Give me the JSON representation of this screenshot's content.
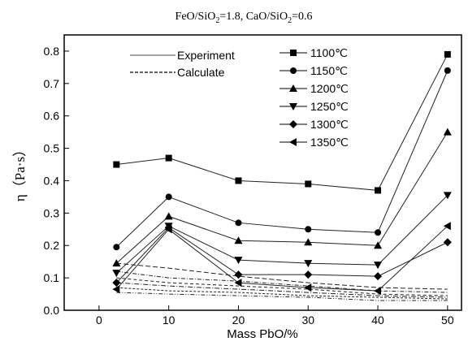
{
  "chart_data": {
    "type": "line",
    "title": "FeO/SiO2=1.8, CaO/SiO2=0.6",
    "title_parts": {
      "a": "FeO/SiO",
      "a_sub": "2",
      "b": "=1.8, CaO/SiO",
      "b_sub": "2",
      "c": "=0.6"
    },
    "xlabel": "Mass PbO/%",
    "ylabel": "η（Pa·s）",
    "xlim": [
      -5,
      52
    ],
    "ylim": [
      0,
      0.85
    ],
    "xticks": [
      0,
      10,
      20,
      30,
      40,
      50
    ],
    "yticks": [
      0.0,
      0.1,
      0.2,
      0.3,
      0.4,
      0.5,
      0.6,
      0.7,
      0.8
    ],
    "ytick_labels": [
      "0.0",
      "0.1",
      "0.2",
      "0.3",
      "0.4",
      "0.5",
      "0.6",
      "0.7",
      "0.8"
    ],
    "x": [
      2.5,
      10,
      20,
      30,
      40,
      50
    ],
    "style_legend": {
      "solid_label": "Experiment",
      "dashed_label": "Calculate"
    },
    "legend_position": "top",
    "series": [
      {
        "name": "1100℃",
        "marker": "square",
        "experiment": [
          0.45,
          0.47,
          0.4,
          0.39,
          0.37,
          0.79
        ],
        "calculate": [
          0.145,
          0.13,
          0.105,
          0.085,
          0.07,
          0.065
        ]
      },
      {
        "name": "1150℃",
        "marker": "circle",
        "experiment": [
          0.195,
          0.35,
          0.27,
          0.25,
          0.24,
          0.74
        ],
        "calculate": [
          0.12,
          0.1,
          0.09,
          0.075,
          0.06,
          0.055
        ]
      },
      {
        "name": "1200℃",
        "marker": "triangle-up",
        "experiment": [
          0.145,
          0.29,
          0.215,
          0.21,
          0.2,
          0.55
        ],
        "calculate": [
          0.1,
          0.085,
          0.075,
          0.065,
          0.05,
          0.045
        ]
      },
      {
        "name": "1250℃",
        "marker": "triangle-down",
        "experiment": [
          0.115,
          0.26,
          0.155,
          0.145,
          0.14,
          0.355
        ],
        "calculate": [
          0.085,
          0.075,
          0.065,
          0.055,
          0.045,
          0.04
        ]
      },
      {
        "name": "1300℃",
        "marker": "diamond",
        "experiment": [
          0.085,
          0.255,
          0.11,
          0.11,
          0.105,
          0.21
        ],
        "calculate": [
          0.07,
          0.06,
          0.055,
          0.045,
          0.04,
          0.035
        ]
      },
      {
        "name": "1350℃",
        "marker": "triangle-left",
        "experiment": [
          0.065,
          0.25,
          0.085,
          0.07,
          0.06,
          0.26
        ],
        "calculate": [
          0.055,
          0.05,
          0.045,
          0.04,
          0.03,
          0.03
        ]
      }
    ]
  }
}
